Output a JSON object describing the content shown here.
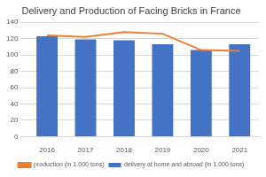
{
  "chart_data": {
    "type": "bar",
    "title": "Delivery and Production of Facing Bricks in France",
    "categories": [
      "2016",
      "2017",
      "2018",
      "2019",
      "2020",
      "2021"
    ],
    "series": [
      {
        "name": "delivery at home and abroad (in 1.000 tons)",
        "type": "bar",
        "color": "#4472c4",
        "values": [
          123,
          119,
          118,
          113,
          106,
          113
        ]
      },
      {
        "name": "production (in 1.000 tons)",
        "type": "line",
        "color": "#ed7d31",
        "marker": "none",
        "values": [
          124,
          122,
          128,
          126,
          106,
          105
        ]
      }
    ],
    "ylim": [
      0,
      140
    ],
    "yticks": [
      0,
      20,
      40,
      60,
      80,
      100,
      120,
      140
    ],
    "grid": true,
    "legend": "bottom"
  }
}
